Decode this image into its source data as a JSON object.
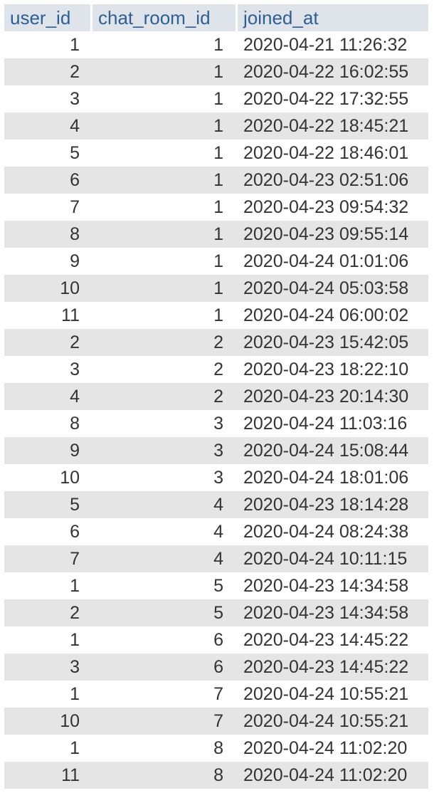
{
  "columns": [
    "user_id",
    "chat_room_id",
    "joined_at"
  ],
  "rows": [
    [
      "1",
      "1",
      "2020-04-21 11:26:32"
    ],
    [
      "2",
      "1",
      "2020-04-22 16:02:55"
    ],
    [
      "3",
      "1",
      "2020-04-22 17:32:55"
    ],
    [
      "4",
      "1",
      "2020-04-22 18:45:21"
    ],
    [
      "5",
      "1",
      "2020-04-22 18:46:01"
    ],
    [
      "6",
      "1",
      "2020-04-23 02:51:06"
    ],
    [
      "7",
      "1",
      "2020-04-23 09:54:32"
    ],
    [
      "8",
      "1",
      "2020-04-23 09:55:14"
    ],
    [
      "9",
      "1",
      "2020-04-24 01:01:06"
    ],
    [
      "10",
      "1",
      "2020-04-24 05:03:58"
    ],
    [
      "11",
      "1",
      "2020-04-24 06:00:02"
    ],
    [
      "2",
      "2",
      "2020-04-23 15:42:05"
    ],
    [
      "3",
      "2",
      "2020-04-23 18:22:10"
    ],
    [
      "4",
      "2",
      "2020-04-23 20:14:30"
    ],
    [
      "8",
      "3",
      "2020-04-24 11:03:16"
    ],
    [
      "9",
      "3",
      "2020-04-24 15:08:44"
    ],
    [
      "10",
      "3",
      "2020-04-24 18:01:06"
    ],
    [
      "5",
      "4",
      "2020-04-23 18:14:28"
    ],
    [
      "6",
      "4",
      "2020-04-24 08:24:38"
    ],
    [
      "7",
      "4",
      "2020-04-24 10:11:15"
    ],
    [
      "1",
      "5",
      "2020-04-23 14:34:58"
    ],
    [
      "2",
      "5",
      "2020-04-23 14:34:58"
    ],
    [
      "1",
      "6",
      "2020-04-23 14:45:22"
    ],
    [
      "3",
      "6",
      "2020-04-23 14:45:22"
    ],
    [
      "1",
      "7",
      "2020-04-24 10:55:21"
    ],
    [
      "10",
      "7",
      "2020-04-24 10:55:21"
    ],
    [
      "1",
      "8",
      "2020-04-24 11:02:20"
    ],
    [
      "11",
      "8",
      "2020-04-24 11:02:20"
    ]
  ]
}
